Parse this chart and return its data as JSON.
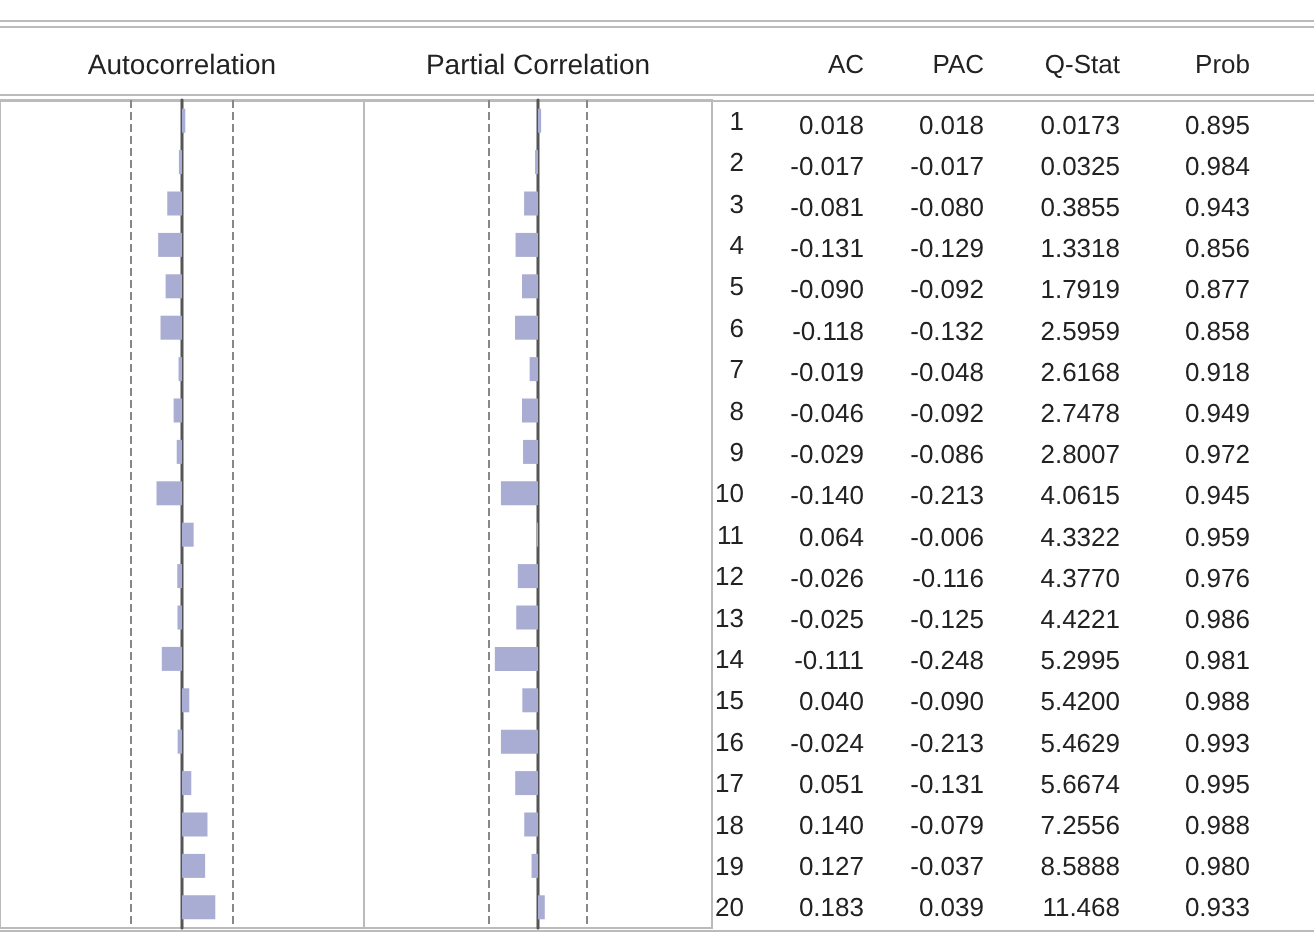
{
  "chart_data": [
    {
      "type": "bar",
      "title": "Autocorrelation",
      "orientation": "horizontal",
      "categories": [
        "1",
        "2",
        "3",
        "4",
        "5",
        "6",
        "7",
        "8",
        "9",
        "10",
        "11",
        "12",
        "13",
        "14",
        "15",
        "16",
        "17",
        "18",
        "19",
        "20"
      ],
      "xlim": [
        -1,
        1
      ],
      "tick_labels": "y",
      "annotations": [
        "AC"
      ],
      "ref_lines": [
        {
          "axis": "x",
          "value": -0.275,
          "line_style": "dashed"
        },
        {
          "axis": "x",
          "value": 0.275,
          "line_style": "dashed"
        }
      ],
      "series": [
        {
          "color": "#a9add3",
          "values": [
            0.018,
            -0.017,
            -0.081,
            -0.131,
            -0.09,
            -0.118,
            -0.019,
            -0.046,
            -0.029,
            -0.14,
            0.064,
            -0.026,
            -0.025,
            -0.111,
            0.04,
            -0.024,
            0.051,
            0.14,
            0.127,
            0.183
          ],
          "value_labels": [
            "0.018",
            "-0.017",
            "-0.081",
            "-0.131",
            "-0.090",
            "-0.118",
            "-0.019",
            "-0.046",
            "-0.029",
            "-0.140",
            "0.064",
            "-0.026",
            "-0.025",
            "-0.111",
            "0.040",
            "-0.024",
            "0.051",
            "0.140",
            "0.127",
            "0.183"
          ]
        }
      ]
    },
    {
      "type": "bar",
      "title": "Partial Correlation",
      "orientation": "horizontal",
      "categories": [
        "1",
        "2",
        "3",
        "4",
        "5",
        "6",
        "7",
        "8",
        "9",
        "10",
        "11",
        "12",
        "13",
        "14",
        "15",
        "16",
        "17",
        "18",
        "19",
        "20"
      ],
      "xlim": [
        -1,
        1
      ],
      "tick_labels": false,
      "annotations": [
        "PAC"
      ],
      "ref_lines": [
        {
          "axis": "x",
          "value": -0.275,
          "line_style": "dashed"
        },
        {
          "axis": "x",
          "value": 0.275,
          "line_style": "dashed"
        }
      ],
      "series": [
        {
          "color": "#a9add3",
          "values": [
            0.018,
            -0.017,
            -0.08,
            -0.129,
            -0.092,
            -0.132,
            -0.048,
            -0.092,
            -0.086,
            -0.213,
            -0.006,
            -0.116,
            -0.125,
            -0.248,
            -0.09,
            -0.213,
            -0.131,
            -0.079,
            -0.037,
            0.039
          ],
          "value_labels": [
            "0.018",
            "-0.017",
            "-0.080",
            "-0.129",
            "-0.092",
            "-0.132",
            "-0.048",
            "-0.092",
            "-0.086",
            "-0.213",
            "-0.006",
            "-0.116",
            "-0.125",
            "-0.248",
            "-0.090",
            "-0.213",
            "-0.131",
            "-0.079",
            "-0.037",
            "0.039"
          ]
        }
      ]
    },
    {
      "type": "other",
      "annotations": [
        "Q-Stat",
        "0.0173",
        "0.0325",
        "0.3855",
        "1.3318",
        "1.7919",
        "2.5959",
        "2.6168",
        "2.7478",
        "2.8007",
        "4.0615",
        "4.3322",
        "4.3770",
        "4.4221",
        "5.2995",
        "5.4200",
        "5.4629",
        "5.6674",
        "7.2556",
        "8.5888",
        "11.468",
        "Prob",
        "0.895",
        "0.984",
        "0.943",
        "0.856",
        "0.877",
        "0.858",
        "0.918",
        "0.949",
        "0.972",
        "0.945",
        "0.959",
        "0.976",
        "0.986",
        "0.981",
        "0.988",
        "0.993",
        "0.995",
        "0.988",
        "0.980",
        "0.933"
      ]
    }
  ]
}
